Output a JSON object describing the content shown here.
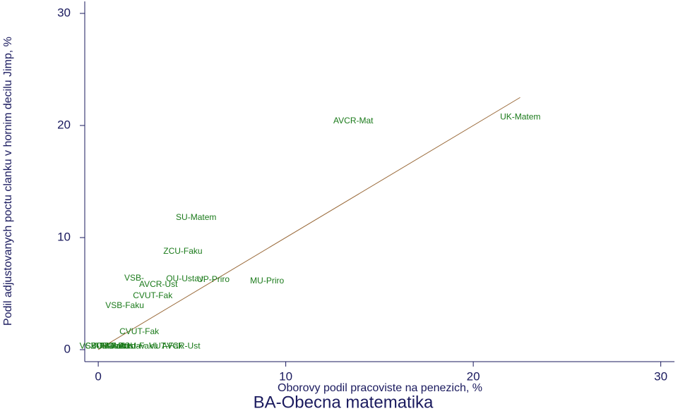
{
  "chart_data": {
    "type": "scatter",
    "title": "BA-Obecna matematika",
    "xlabel": "Oborovy podil pracoviste na penezich, %",
    "ylabel": "Podil adjustovanych poctu clanku v hornim decilu Jimp, %",
    "xlim": [
      -0.72,
      30.73
    ],
    "ylim": [
      -1.07,
      31.07
    ],
    "xticks": [
      0,
      10,
      20,
      30
    ],
    "yticks": [
      0,
      10,
      20,
      30
    ],
    "points": {
      "color": "#1a7a1a",
      "labels": [
        "AVCR-Mat",
        "UK-Matem",
        "SU-Matem",
        "ZCU-Faku",
        "VSB-",
        "OU-Ustav",
        "UP-Priro",
        "AVCR-Ust",
        "MU-Priro",
        "CVUT-Fak",
        "VSB-Faku",
        "CVUT-Fak",
        "VSB-Faku",
        "CVUT-Fak",
        "ZCU-Faku",
        "UP-Priro",
        "MU-Priro",
        "OU-Ustav",
        "ZCU-Faku",
        "VUT-Fak",
        "AVCR-Ust"
      ],
      "x": [
        12.54,
        21.43,
        4.14,
        3.47,
        1.39,
        3.62,
        5.27,
        2.18,
        8.1,
        1.85,
        0.38,
        1.13,
        -1.0,
        -0.7,
        -0.4,
        -0.1,
        0.2,
        0.5,
        1.1,
        2.71,
        3.39
      ],
      "y": [
        20.4,
        20.75,
        11.76,
        8.74,
        6.35,
        6.29,
        6.23,
        5.79,
        6.1,
        4.78,
        3.9,
        1.57,
        0.3,
        0.3,
        0.3,
        0.3,
        0.3,
        0.3,
        0.3,
        0.3,
        0.3
      ]
    },
    "line": {
      "color": "#9a6a3a",
      "x": [
        0,
        22.5
      ],
      "y": [
        0,
        22.5
      ]
    }
  }
}
